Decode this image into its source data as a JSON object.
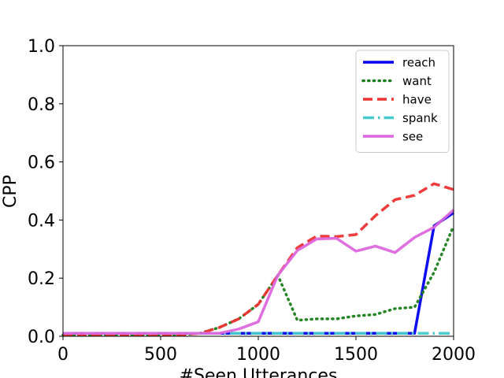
{
  "chart_data": {
    "type": "line",
    "title": "",
    "xlabel": "#Seen Utterances",
    "ylabel": "CPP",
    "xlim": [
      0,
      2000
    ],
    "ylim": [
      0,
      1.0
    ],
    "xticks": [
      0,
      500,
      1000,
      1500,
      2000
    ],
    "xtick_labels": [
      "0",
      "500",
      "1000",
      "1500",
      "2000"
    ],
    "yticks": [
      0,
      0.2,
      0.4,
      0.6,
      0.8,
      1.0
    ],
    "ytick_labels": [
      "0.0",
      "0.2",
      "0.4",
      "0.6",
      "0.8",
      "1.0"
    ],
    "grid": false,
    "legend_position": "top-right",
    "x": [
      0,
      100,
      200,
      300,
      400,
      500,
      600,
      700,
      800,
      900,
      1000,
      1100,
      1200,
      1300,
      1400,
      1500,
      1600,
      1700,
      1800,
      1900,
      2000
    ],
    "series": [
      {
        "name": "reach",
        "color": "#0000ee",
        "style": "solid",
        "values": [
          0.01,
          0.01,
          0.01,
          0.01,
          0.01,
          0.01,
          0.01,
          0.01,
          0.01,
          0.01,
          0.01,
          0.01,
          0.01,
          0.01,
          0.01,
          0.01,
          0.01,
          0.01,
          0.01,
          0.38,
          0.425
        ]
      },
      {
        "name": "want",
        "color": "#1a7f1a",
        "style": "dotted",
        "values": [
          0.005,
          0.005,
          0.005,
          0.005,
          0.005,
          0.005,
          0.005,
          0.01,
          0.03,
          0.06,
          0.11,
          0.21,
          0.055,
          0.06,
          0.06,
          0.07,
          0.075,
          0.095,
          0.1,
          0.22,
          0.38
        ]
      },
      {
        "name": "have",
        "color": "#ee3333",
        "style": "dashed",
        "values": [
          0.005,
          0.005,
          0.005,
          0.005,
          0.005,
          0.005,
          0.005,
          0.01,
          0.03,
          0.06,
          0.11,
          0.21,
          0.305,
          0.345,
          0.343,
          0.35,
          0.415,
          0.47,
          0.485,
          0.525,
          0.505
        ]
      },
      {
        "name": "spank",
        "color": "#44cccc",
        "style": "dashdot",
        "values": [
          0.01,
          0.01,
          0.01,
          0.01,
          0.01,
          0.01,
          0.01,
          0.01,
          0.01,
          0.01,
          0.01,
          0.01,
          0.01,
          0.01,
          0.01,
          0.01,
          0.01,
          0.01,
          0.01,
          0.01,
          0.01
        ]
      },
      {
        "name": "see",
        "color": "#dd66dd",
        "style": "solid",
        "values": [
          0.01,
          0.01,
          0.01,
          0.01,
          0.01,
          0.01,
          0.01,
          0.01,
          0.01,
          0.025,
          0.05,
          0.21,
          0.295,
          0.335,
          0.337,
          0.293,
          0.31,
          0.288,
          0.34,
          0.375,
          0.435
        ]
      }
    ]
  }
}
